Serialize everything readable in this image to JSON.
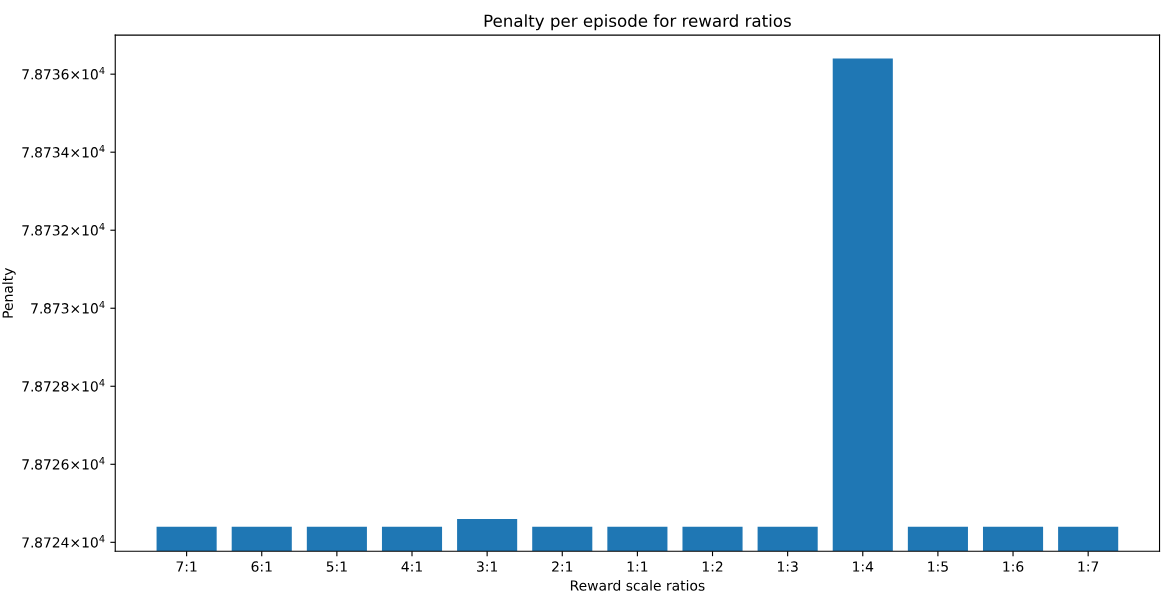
{
  "chart_data": {
    "type": "bar",
    "title": "Penalty per episode for reward ratios",
    "xlabel": "Reward scale ratios",
    "ylabel": "Penalty",
    "categories": [
      "7:1",
      "6:1",
      "5:1",
      "4:1",
      "3:1",
      "2:1",
      "1:1",
      "1:2",
      "1:3",
      "1:4",
      "1:5",
      "1:6",
      "1:7"
    ],
    "values": [
      78724.4,
      78724.4,
      78724.4,
      78724.4,
      78724.6,
      78724.4,
      78724.4,
      78724.4,
      78724.4,
      78736.4,
      78724.4,
      78724.4,
      78724.4
    ],
    "color": "#1f77b4",
    "log": true,
    "ylim": [
      78723.77,
      78737.0
    ],
    "yticks": [
      {
        "value": 78724,
        "label": "7.8724×10$^{4}$"
      },
      {
        "value": 78726,
        "label": "7.8726×10$^{4}$"
      },
      {
        "value": 78728,
        "label": "7.8728×10$^{4}$"
      },
      {
        "value": 78730,
        "label": "7.873×10$^{4}$"
      },
      {
        "value": 78732,
        "label": "7.8732×10$^{4}$"
      },
      {
        "value": 78734,
        "label": "7.8734×10$^{4}$"
      },
      {
        "value": 78736,
        "label": "7.8736×10$^{4}$"
      }
    ],
    "grid": false
  }
}
